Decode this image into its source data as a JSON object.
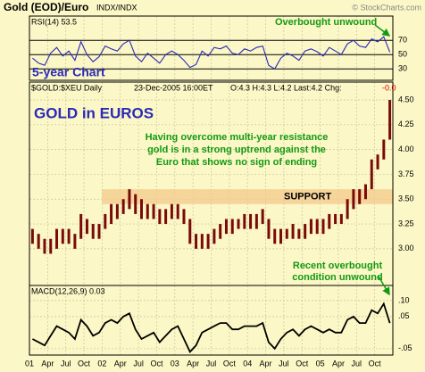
{
  "header": {
    "title": "Gold (EOD)/Euro",
    "exchange": "INDX/INDX",
    "copyright": "© StockCharts.com"
  },
  "chart_data": [
    {
      "type": "line",
      "label": "RSI(14) 53.5",
      "annotation": [
        "Overbought unwound"
      ],
      "subtitle": "5-year Chart",
      "color": "#2a2ab8",
      "ylim": [
        14,
        104
      ],
      "yticks": [
        30,
        50,
        70
      ],
      "grid": true,
      "values": [
        45,
        38,
        35,
        52,
        60,
        48,
        55,
        42,
        68,
        50,
        40,
        47,
        62,
        58,
        55,
        65,
        70,
        48,
        40,
        52,
        45,
        38,
        50,
        55,
        50,
        42,
        32,
        36,
        55,
        48,
        60,
        58,
        62,
        52,
        50,
        58,
        55,
        60,
        62,
        35,
        30,
        45,
        52,
        48,
        42,
        55,
        58,
        54,
        48,
        60,
        55,
        50,
        65,
        70,
        62,
        60,
        72,
        68,
        75,
        53.5
      ]
    },
    {
      "type": "hlbar",
      "label": "$GOLD:$XEU Daily",
      "date": "23-Dec-2005 16:00ET",
      "quote": "O:4.3 H:4.3 L:4.2 Last:4.2 Chg:",
      "change": "-0.0",
      "title": "GOLD in EUROS",
      "annotation": [
        "Having overcome multi-year resistance",
        "gold is in a strong uptrend against the",
        "Euro that shows no sign of ending"
      ],
      "band_label": "SUPPORT",
      "band": [
        3.45,
        3.6
      ],
      "band_color": "#f4c98c",
      "color": "#7a0a0a",
      "ylim": [
        2.63,
        4.68
      ],
      "grid": true,
      "yticks": [
        {
          "value": 3,
          "label": "3.00"
        },
        3.25,
        {
          "value": 3.5,
          "label": "3.50"
        },
        3.75,
        {
          "value": 4,
          "label": "4.00"
        },
        4.25,
        {
          "value": 4.5,
          "label": "4.50"
        }
      ],
      "high": [
        3.2,
        3.15,
        3.1,
        3.1,
        3.2,
        3.2,
        3.2,
        3.15,
        3.35,
        3.3,
        3.25,
        3.25,
        3.35,
        3.45,
        3.45,
        3.5,
        3.6,
        3.55,
        3.5,
        3.45,
        3.45,
        3.4,
        3.4,
        3.45,
        3.45,
        3.4,
        3.3,
        3.15,
        3.15,
        3.15,
        3.2,
        3.25,
        3.3,
        3.3,
        3.3,
        3.35,
        3.35,
        3.35,
        3.4,
        3.3,
        3.2,
        3.2,
        3.2,
        3.25,
        3.2,
        3.25,
        3.3,
        3.3,
        3.3,
        3.35,
        3.35,
        3.35,
        3.5,
        3.6,
        3.6,
        3.65,
        3.9,
        3.95,
        4.1,
        4.5
      ],
      "low": [
        3.05,
        3.0,
        2.95,
        2.95,
        3.0,
        3.05,
        3.05,
        3.0,
        3.1,
        3.15,
        3.1,
        3.1,
        3.2,
        3.25,
        3.3,
        3.35,
        3.4,
        3.35,
        3.3,
        3.3,
        3.3,
        3.25,
        3.25,
        3.3,
        3.3,
        3.25,
        3.05,
        3.0,
        3.0,
        3.0,
        3.05,
        3.1,
        3.15,
        3.15,
        3.2,
        3.2,
        3.2,
        3.2,
        3.25,
        3.1,
        3.05,
        3.05,
        3.1,
        3.1,
        3.1,
        3.1,
        3.15,
        3.15,
        3.15,
        3.2,
        3.25,
        3.25,
        3.3,
        3.4,
        3.45,
        3.5,
        3.6,
        3.8,
        3.9,
        4.1
      ]
    },
    {
      "type": "line",
      "label": "MACD(12,26,9) 0.03",
      "annotation": [
        "Recent overbought",
        "condition unwound"
      ],
      "color": "#000000",
      "ylim": [
        -0.07,
        0.147
      ],
      "grid": true,
      "yticks": [
        {
          "value": 0.1,
          "label": ".10"
        },
        {
          "value": 0.05,
          "label": ".05"
        },
        {
          "value": -0.05,
          "label": "-.05"
        }
      ],
      "values": [
        -0.02,
        -0.03,
        -0.04,
        -0.01,
        0.02,
        0.01,
        0.0,
        -0.02,
        0.04,
        0.02,
        -0.01,
        0.0,
        0.03,
        0.04,
        0.03,
        0.05,
        0.06,
        0.01,
        -0.02,
        -0.01,
        0.0,
        -0.03,
        -0.01,
        0.01,
        0.02,
        -0.02,
        -0.06,
        -0.04,
        0.0,
        0.01,
        0.02,
        0.03,
        0.03,
        0.01,
        0.01,
        0.02,
        0.02,
        0.02,
        0.03,
        -0.03,
        -0.05,
        -0.02,
        0.0,
        0.01,
        -0.01,
        0.01,
        0.02,
        0.01,
        0.0,
        0.01,
        0.0,
        0.0,
        0.04,
        0.05,
        0.03,
        0.03,
        0.07,
        0.06,
        0.09,
        0.03
      ],
      "x": [
        "2001-01",
        "2001-02",
        "2001-03",
        "2001-04",
        "2001-05",
        "2001-06",
        "2001-07",
        "2001-08",
        "2001-09",
        "2001-10",
        "2001-11",
        "2001-12",
        "2002-01",
        "2002-02",
        "2002-03",
        "2002-04",
        "2002-05",
        "2002-06",
        "2002-07",
        "2002-08",
        "2002-09",
        "2002-10",
        "2002-11",
        "2002-12",
        "2003-01",
        "2003-02",
        "2003-03",
        "2003-04",
        "2003-05",
        "2003-06",
        "2003-07",
        "2003-08",
        "2003-09",
        "2003-10",
        "2003-11",
        "2003-12",
        "2004-01",
        "2004-02",
        "2004-03",
        "2004-04",
        "2004-05",
        "2004-06",
        "2004-07",
        "2004-08",
        "2004-09",
        "2004-10",
        "2004-11",
        "2004-12",
        "2005-01",
        "2005-02",
        "2005-03",
        "2005-04",
        "2005-05",
        "2005-06",
        "2005-07",
        "2005-08",
        "2005-09",
        "2005-10",
        "2005-11",
        "2005-12"
      ],
      "xticks": [
        {
          "value": "2001-01",
          "label": "01"
        },
        {
          "value": "2001-04",
          "label": "Apr"
        },
        {
          "value": "2001-07",
          "label": "Jul"
        },
        {
          "value": "2001-10",
          "label": "Oct"
        },
        {
          "value": "2002-01",
          "label": "02"
        },
        {
          "value": "2002-04",
          "label": "Apr"
        },
        {
          "value": "2002-07",
          "label": "Jul"
        },
        {
          "value": "2002-10",
          "label": "Oct"
        },
        {
          "value": "2003-01",
          "label": "03"
        },
        {
          "value": "2003-04",
          "label": "Apr"
        },
        {
          "value": "2003-07",
          "label": "Jul"
        },
        {
          "value": "2003-10",
          "label": "Oct"
        },
        {
          "value": "2004-01",
          "label": "04"
        },
        {
          "value": "2004-04",
          "label": "Apr"
        },
        {
          "value": "2004-07",
          "label": "Jul"
        },
        {
          "value": "2004-10",
          "label": "Oct"
        },
        {
          "value": "2005-01",
          "label": "05"
        },
        {
          "value": "2005-04",
          "label": "Apr"
        },
        {
          "value": "2005-07",
          "label": "Jul"
        },
        {
          "value": "2005-10",
          "label": "Oct"
        }
      ]
    }
  ]
}
